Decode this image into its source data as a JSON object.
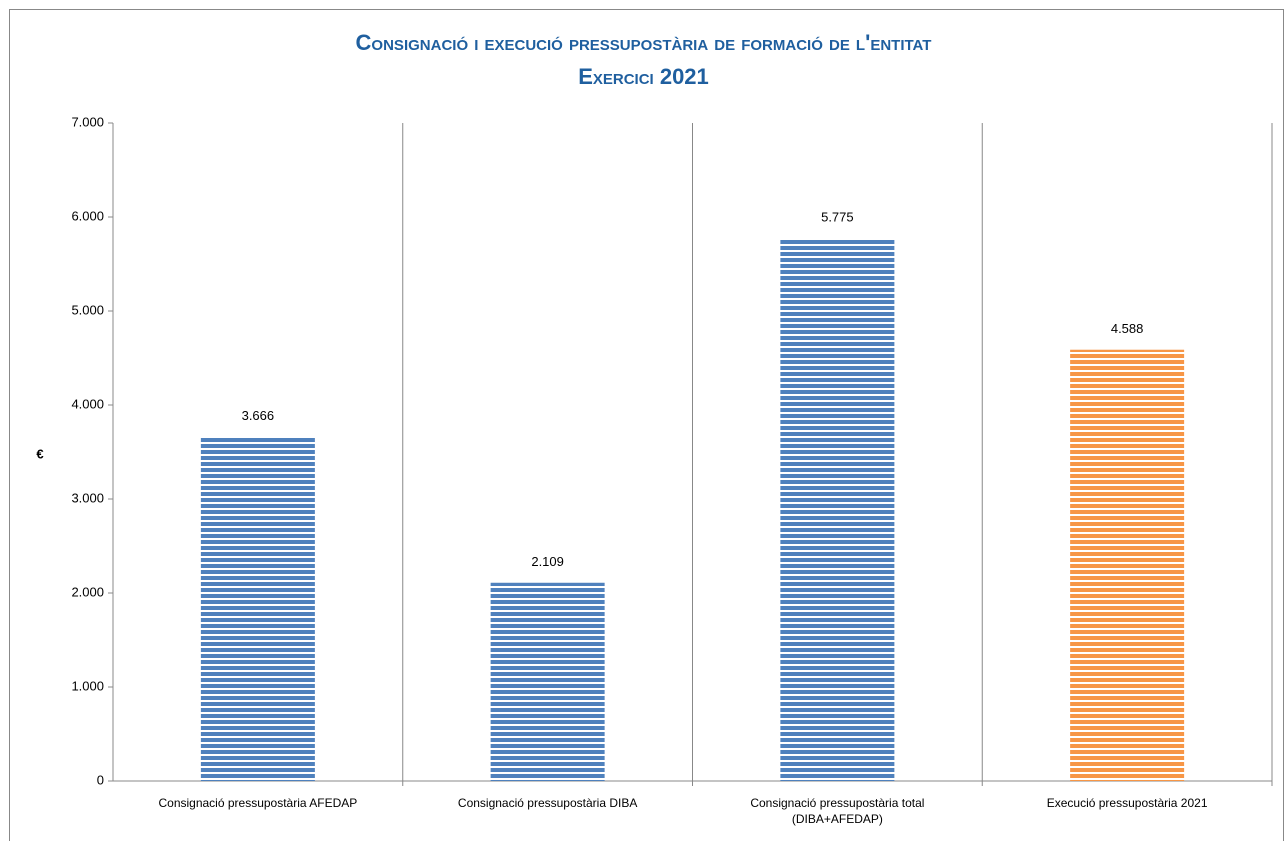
{
  "chart_data": {
    "type": "bar",
    "title": "Consignació i execució pressupostària de formació de l'entitat",
    "subtitle": "Exercici 2021",
    "y_label": "€",
    "categories": [
      "Consignació pressupostària AFEDAP",
      "Consignació pressupostària DIBA",
      "Consignació pressupostària total (DIBA+AFEDAP)",
      "Execució pressupostària 2021"
    ],
    "values": [
      3666,
      2109,
      5775,
      4588
    ],
    "value_labels": [
      "3.666",
      "2.109",
      "5.775",
      "4.588"
    ],
    "colors": [
      "#4f81bd",
      "#4f81bd",
      "#4f81bd",
      "#f79646"
    ],
    "ylim": [
      0,
      7000
    ],
    "yticks": [
      0,
      {
        "value": 1000,
        "label": "1.000"
      },
      {
        "value": 2000,
        "label": "2.000"
      },
      {
        "value": 3000,
        "label": "3.000"
      },
      {
        "value": 4000,
        "label": "4.000"
      },
      {
        "value": 5000,
        "label": "5.000"
      },
      {
        "value": 6000,
        "label": "6.000"
      },
      {
        "value": 7000,
        "label": "7.000"
      }
    ]
  }
}
